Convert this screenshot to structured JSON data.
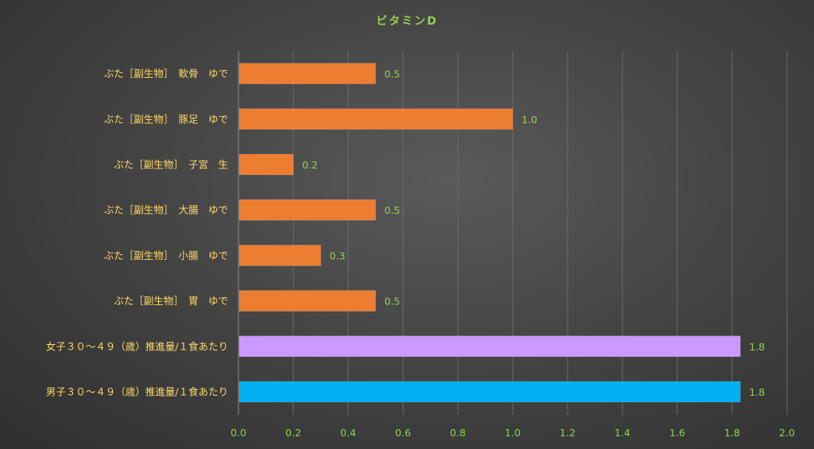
{
  "chart_data": {
    "type": "bar",
    "orientation": "horizontal",
    "title": "ビタミンD",
    "xlim": [
      0,
      2.0
    ],
    "x_ticks": [
      "0.0",
      "0.2",
      "0.4",
      "0.6",
      "0.8",
      "1.0",
      "1.2",
      "1.4",
      "1.6",
      "1.8",
      "2.0"
    ],
    "grid": true,
    "legend": "none",
    "categories": [
      "ぶた［副生物］　軟骨　ゆで",
      "ぶた［副生物］　豚足　ゆで",
      "ぶた［副生物］　子宮　生",
      "ぶた［副生物］　大腸　ゆで",
      "ぶた［副生物］　小腸　ゆで",
      "ぶた［副生物］　胃　ゆで",
      "女子３０～４９（歳）推進量/１食あたり",
      "男子３０～４９（歳）推進量/１食あたり"
    ],
    "values": [
      0.5,
      1.0,
      0.2,
      0.5,
      0.3,
      0.5,
      1.83,
      1.83
    ],
    "value_labels": [
      "0.5",
      "1.0",
      "0.2",
      "0.5",
      "0.3",
      "0.5",
      "1.8",
      "1.8"
    ],
    "bar_colors": [
      "#ed7d31",
      "#ed7d31",
      "#ed7d31",
      "#ed7d31",
      "#ed7d31",
      "#ed7d31",
      "#cc99ff",
      "#00b0f0"
    ]
  },
  "colors": {
    "title": "#92d050",
    "category_label": "#ffd966",
    "tick_label": "#92d050",
    "value_label": "#92d050"
  }
}
